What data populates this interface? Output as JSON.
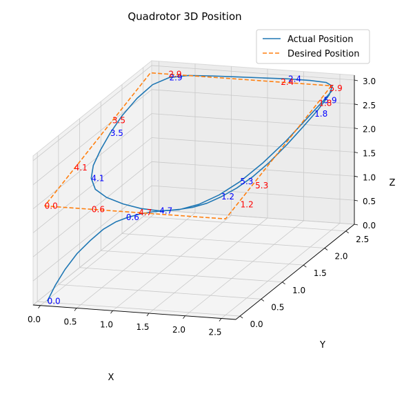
{
  "chart_data": {
    "type": "line",
    "projection": "3d",
    "title": "Quadrotor 3D Position",
    "xlabel": "X",
    "ylabel": "Y",
    "zlabel": "Z",
    "xlim": [
      -0.1,
      2.7
    ],
    "ylim": [
      -0.1,
      2.7
    ],
    "zlim": [
      0.0,
      3.1
    ],
    "x_ticks": [
      "0.0",
      "0.5",
      "1.0",
      "1.5",
      "2.0",
      "2.5"
    ],
    "y_ticks": [
      "0.0",
      "0.5",
      "1.0",
      "1.5",
      "2.0",
      "2.5"
    ],
    "z_ticks": [
      "0.0",
      "0.5",
      "1.0",
      "1.5",
      "2.0",
      "2.5",
      "3.0"
    ],
    "grid": true,
    "legend_position": "top-right",
    "series": [
      {
        "name": "Actual Position",
        "color": "#1f77b4",
        "style": "solid",
        "points": [
          [
            0.02,
            0.03,
            0.0
          ],
          [
            0.1,
            0.08,
            0.3
          ],
          [
            0.2,
            0.14,
            0.6
          ],
          [
            0.33,
            0.2,
            0.9
          ],
          [
            0.48,
            0.27,
            1.15
          ],
          [
            0.62,
            0.33,
            1.35
          ],
          [
            0.76,
            0.38,
            1.48
          ],
          [
            0.9,
            0.42,
            1.56
          ],
          [
            1.05,
            0.46,
            1.62
          ],
          [
            1.2,
            0.49,
            1.66
          ],
          [
            1.38,
            0.51,
            1.69
          ],
          [
            1.55,
            0.53,
            1.72
          ],
          [
            1.72,
            0.56,
            1.76
          ],
          [
            1.88,
            0.62,
            1.82
          ],
          [
            2.02,
            0.72,
            1.9
          ],
          [
            2.14,
            0.88,
            1.98
          ],
          [
            2.24,
            1.08,
            2.08
          ],
          [
            2.33,
            1.32,
            2.22
          ],
          [
            2.41,
            1.6,
            2.4
          ],
          [
            2.47,
            1.88,
            2.58
          ],
          [
            2.52,
            2.15,
            2.75
          ],
          [
            2.54,
            2.38,
            2.9
          ],
          [
            2.5,
            2.52,
            2.98
          ],
          [
            2.38,
            2.58,
            3.0
          ],
          [
            2.15,
            2.59,
            3.01
          ],
          [
            1.85,
            2.59,
            3.01
          ],
          [
            1.5,
            2.58,
            3.0
          ],
          [
            1.15,
            2.57,
            2.99
          ],
          [
            0.8,
            2.56,
            2.98
          ],
          [
            0.5,
            2.54,
            2.97
          ],
          [
            0.26,
            2.5,
            2.93
          ],
          [
            0.1,
            2.38,
            2.85
          ],
          [
            0.02,
            2.15,
            2.72
          ],
          [
            -0.01,
            1.85,
            2.57
          ],
          [
            0.0,
            1.55,
            2.42
          ],
          [
            0.04,
            1.25,
            2.28
          ],
          [
            0.1,
            0.98,
            2.16
          ],
          [
            0.2,
            0.76,
            2.06
          ],
          [
            0.35,
            0.6,
            1.96
          ],
          [
            0.55,
            0.52,
            1.87
          ],
          [
            0.8,
            0.49,
            1.78
          ],
          [
            1.05,
            0.48,
            1.72
          ],
          [
            1.3,
            0.49,
            1.69
          ],
          [
            1.55,
            0.52,
            1.72
          ],
          [
            1.78,
            0.6,
            1.8
          ],
          [
            1.98,
            0.74,
            1.92
          ],
          [
            2.14,
            0.96,
            2.06
          ],
          [
            2.28,
            1.25,
            2.25
          ],
          [
            2.4,
            1.6,
            2.48
          ],
          [
            2.48,
            1.95,
            2.7
          ],
          [
            2.54,
            2.25,
            2.88
          ],
          [
            2.56,
            2.42,
            2.97
          ]
        ],
        "labels": [
          {
            "text": "0.0",
            "at": [
              0.02,
              0.03,
              0.0
            ]
          },
          {
            "text": "0.6",
            "at": [
              0.88,
              0.42,
              1.56
            ]
          },
          {
            "text": "1.2",
            "at": [
              2.02,
              0.72,
              1.9
            ]
          },
          {
            "text": "1.8",
            "at": [
              2.5,
              2.1,
              2.7
            ]
          },
          {
            "text": "2.4",
            "at": [
              1.85,
              2.59,
              3.01
            ]
          },
          {
            "text": "2.9",
            "at": [
              0.26,
              2.5,
              2.93
            ]
          },
          {
            "text": "3.5",
            "at": [
              0.0,
              1.55,
              2.42
            ]
          },
          {
            "text": "4.1",
            "at": [
              0.2,
              0.76,
              2.06
            ]
          },
          {
            "text": "4.7",
            "at": [
              1.3,
              0.49,
              1.69
            ]
          },
          {
            "text": "5.3",
            "at": [
              2.14,
              0.96,
              2.06
            ]
          },
          {
            "text": "5.9",
            "at": [
              2.54,
              2.25,
              2.88
            ]
          }
        ]
      },
      {
        "name": "Desired Position",
        "color": "#ff7f0e",
        "style": "dashed",
        "points": [
          [
            0.0,
            0.0,
            2.0
          ],
          [
            0.5,
            0.0,
            2.0
          ],
          [
            1.0,
            0.0,
            2.0
          ],
          [
            1.5,
            0.0,
            2.0
          ],
          [
            2.0,
            0.0,
            2.0
          ],
          [
            2.5,
            0.0,
            2.0
          ],
          [
            2.5,
            0.5,
            2.2
          ],
          [
            2.5,
            1.0,
            2.4
          ],
          [
            2.5,
            1.5,
            2.6
          ],
          [
            2.5,
            2.0,
            2.8
          ],
          [
            2.5,
            2.5,
            3.0
          ],
          [
            2.0,
            2.5,
            3.0
          ],
          [
            1.5,
            2.5,
            3.0
          ],
          [
            1.0,
            2.5,
            3.0
          ],
          [
            0.5,
            2.5,
            3.0
          ],
          [
            0.0,
            2.5,
            3.0
          ],
          [
            0.0,
            2.0,
            2.8
          ],
          [
            0.0,
            1.5,
            2.6
          ],
          [
            0.0,
            1.0,
            2.4
          ],
          [
            0.0,
            0.5,
            2.2
          ],
          [
            0.0,
            0.0,
            2.0
          ]
        ],
        "labels": [
          {
            "text": "0.0",
            "at": [
              0.0,
              0.0,
              2.0
            ]
          },
          {
            "text": "0.6",
            "at": [
              0.65,
              0.0,
              2.0
            ]
          },
          {
            "text": "1.2",
            "at": [
              2.5,
              0.35,
              2.05
            ]
          },
          {
            "text": "1.8",
            "at": [
              2.5,
              2.2,
              2.85
            ]
          },
          {
            "text": "2.4",
            "at": [
              1.8,
              2.5,
              3.0
            ]
          },
          {
            "text": "2.9",
            "at": [
              0.25,
              2.5,
              3.0
            ]
          },
          {
            "text": "3.5",
            "at": [
              0.0,
              1.6,
              2.65
            ]
          },
          {
            "text": "4.1",
            "at": [
              0.0,
              0.7,
              2.3
            ]
          },
          {
            "text": "4.7",
            "at": [
              1.3,
              0.0,
              2.0
            ]
          },
          {
            "text": "5.3",
            "at": [
              2.5,
              0.7,
              2.2
            ]
          },
          {
            "text": "5.9",
            "at": [
              2.5,
              2.45,
              2.98
            ]
          }
        ]
      }
    ]
  }
}
